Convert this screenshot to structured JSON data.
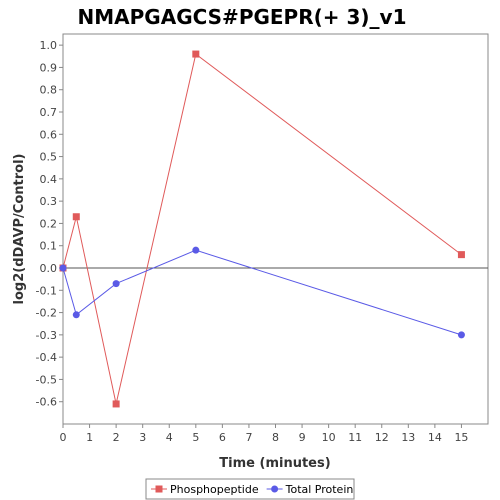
{
  "chart_data": {
    "type": "line",
    "title": "NMAPGAGCS#PGEPR(+ 3)_v1",
    "xlabel": "Time (minutes)",
    "ylabel": "log2(dDAVP/Control)",
    "xlim": [
      0,
      16
    ],
    "ylim": [
      -0.7,
      1.05
    ],
    "x_ticks": [
      0,
      1,
      2,
      3,
      4,
      5,
      6,
      7,
      8,
      9,
      10,
      11,
      12,
      13,
      14,
      15
    ],
    "y_ticks": [
      1.0,
      0.9,
      0.8,
      0.7,
      0.6,
      0.5,
      0.4,
      0.3,
      0.2,
      0.1,
      0.0,
      -0.1,
      -0.2,
      -0.3,
      -0.4,
      -0.5,
      -0.6
    ],
    "y_tick_labels": [
      "1.0",
      "0.9",
      "0.8",
      "0.7",
      "0.6",
      "0.5",
      "0.4",
      "0.3",
      "0.2",
      "0.1",
      "0.0",
      "-0.1",
      "-0.2",
      "-0.3",
      "-0.4",
      "-0.5",
      "-0.6"
    ],
    "zero_line": true,
    "grid": false,
    "legend_position": "bottom",
    "series": [
      {
        "name": "Phosphopeptide",
        "color": "#e05a5a",
        "marker": "square",
        "x": [
          0,
          0.5,
          2,
          5,
          15
        ],
        "y": [
          0.0,
          0.23,
          -0.61,
          0.96,
          0.06
        ]
      },
      {
        "name": "Total Protein",
        "color": "#5a5ae6",
        "marker": "circle",
        "x": [
          0,
          0.5,
          2,
          5,
          15
        ],
        "y": [
          0.0,
          -0.21,
          -0.07,
          0.08,
          -0.3
        ]
      }
    ]
  }
}
